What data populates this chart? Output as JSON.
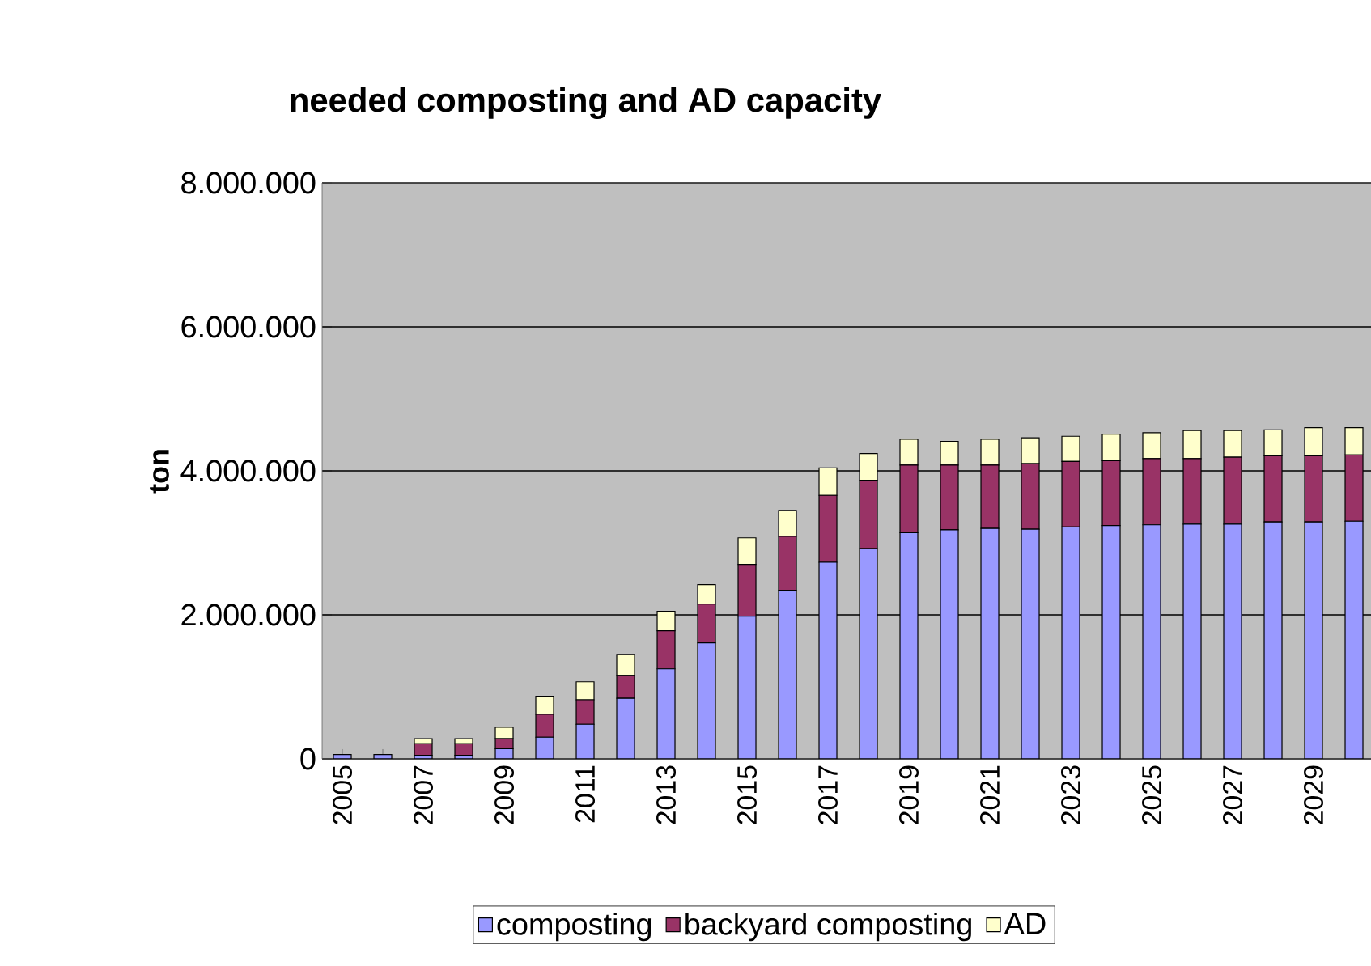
{
  "chart_data": {
    "type": "bar",
    "stacked": true,
    "title": "needed composting and AD capacity",
    "ylabel": "ton",
    "categories": [
      "2005",
      null,
      "2007",
      null,
      "2009",
      null,
      "2011",
      null,
      "2013",
      null,
      "2015",
      null,
      "2017",
      null,
      "2019",
      null,
      "2021",
      null,
      "2023",
      null,
      "2025",
      null,
      "2027",
      null,
      "2029",
      null
    ],
    "series": [
      {
        "name": "composting",
        "color": "#9999ff",
        "values": [
          60000,
          60000,
          50000,
          50000,
          140000,
          300000,
          480000,
          840000,
          1250000,
          1610000,
          1980000,
          2340000,
          2730000,
          2920000,
          3140000,
          3180000,
          3200000,
          3190000,
          3220000,
          3240000,
          3250000,
          3260000,
          3260000,
          3290000,
          3290000,
          3300000
        ]
      },
      {
        "name": "backyard composting",
        "color": "#993366",
        "values": [
          0,
          0,
          160000,
          160000,
          140000,
          320000,
          340000,
          320000,
          530000,
          540000,
          720000,
          750000,
          930000,
          950000,
          940000,
          900000,
          880000,
          910000,
          910000,
          900000,
          920000,
          910000,
          930000,
          920000,
          920000,
          920000
        ]
      },
      {
        "name": "AD",
        "color": "#ffffcc",
        "values": [
          0,
          0,
          70000,
          70000,
          160000,
          250000,
          250000,
          290000,
          270000,
          270000,
          370000,
          360000,
          380000,
          370000,
          360000,
          330000,
          360000,
          360000,
          350000,
          370000,
          360000,
          390000,
          370000,
          360000,
          390000,
          380000
        ]
      }
    ],
    "ylim": [
      0,
      8000000
    ],
    "yticks": [
      {
        "value": 0,
        "label": "0"
      },
      {
        "value": 2000000,
        "label": "2.000.000"
      },
      {
        "value": 4000000,
        "label": "4.000.000"
      },
      {
        "value": 6000000,
        "label": "6.000.000"
      },
      {
        "value": 8000000,
        "label": "8.000.000"
      }
    ],
    "grid": "y",
    "legend": "bottom"
  }
}
